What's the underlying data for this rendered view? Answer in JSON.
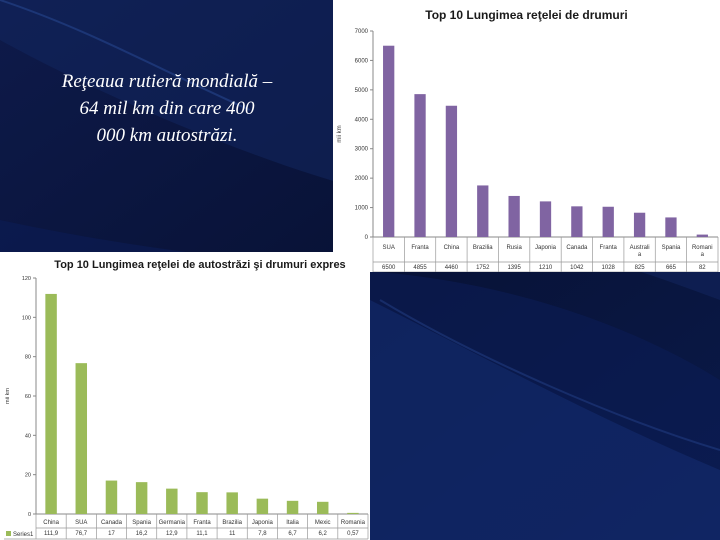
{
  "slide": {
    "text_lines": [
      "Reţeaua rutieră mondială –",
      "64 mil km din care   400",
      "000 km autostrăzi."
    ],
    "colors": {
      "background": "#0a1030",
      "accent": "#1e3c7a",
      "text": "#ffffff"
    }
  },
  "chart_data": [
    {
      "type": "bar",
      "title": "Top 10 Lungimea reţelei de drumuri",
      "xlabel": "",
      "ylabel": "mii km",
      "ylim": [
        0,
        7000
      ],
      "yticks": [
        0,
        1000,
        2000,
        3000,
        4000,
        5000,
        6000,
        7000
      ],
      "grid": false,
      "legend": "none",
      "color": "#8064a2",
      "categories": [
        "SUA",
        "Franta",
        "China",
        "Brazilia",
        "Rusia",
        "Japonia",
        "Canada",
        "Franta",
        "Australia",
        "Spania",
        "Romania"
      ],
      "category_labels": [
        [
          "SUA"
        ],
        [
          "Franta"
        ],
        [
          "China"
        ],
        [
          "Brazilia"
        ],
        [
          "Rusia"
        ],
        [
          "Japonia"
        ],
        [
          "Canada"
        ],
        [
          "Franta"
        ],
        [
          "Australi",
          "a"
        ],
        [
          "Spania"
        ],
        [
          "Romani",
          "a"
        ]
      ],
      "values": [
        6500,
        4855,
        4460,
        1752,
        1395,
        1210,
        1042,
        1028,
        825,
        665,
        82
      ],
      "value_labels": [
        "6500",
        "4855",
        "4460",
        "1752",
        "1395",
        "1210",
        "1042",
        "1028",
        "825",
        "665",
        "82"
      ]
    },
    {
      "type": "bar",
      "title": "Top 10 Lungimea reţelei de autostrăzi şi drumuri expres",
      "xlabel": "",
      "ylabel": "mii km",
      "ylim": [
        0,
        120
      ],
      "yticks": [
        0,
        20,
        40,
        60,
        80,
        100,
        120
      ],
      "grid": false,
      "legend": "none",
      "color": "#9bbb59",
      "series_name": "Series1",
      "categories": [
        "China",
        "SUA",
        "Canada",
        "Spania",
        "Germania",
        "Franta",
        "Brazilia",
        "Japonia",
        "Italia",
        "Mexic",
        "Romania"
      ],
      "values": [
        111.9,
        76.7,
        17,
        16.2,
        12.9,
        11.1,
        11,
        7.8,
        6.7,
        6.2,
        0.57
      ],
      "value_labels": [
        "111,9",
        "76,7",
        "17",
        "16,2",
        "12,9",
        "11,1",
        "11",
        "7,8",
        "6,7",
        "6,2",
        "0,57"
      ]
    }
  ]
}
